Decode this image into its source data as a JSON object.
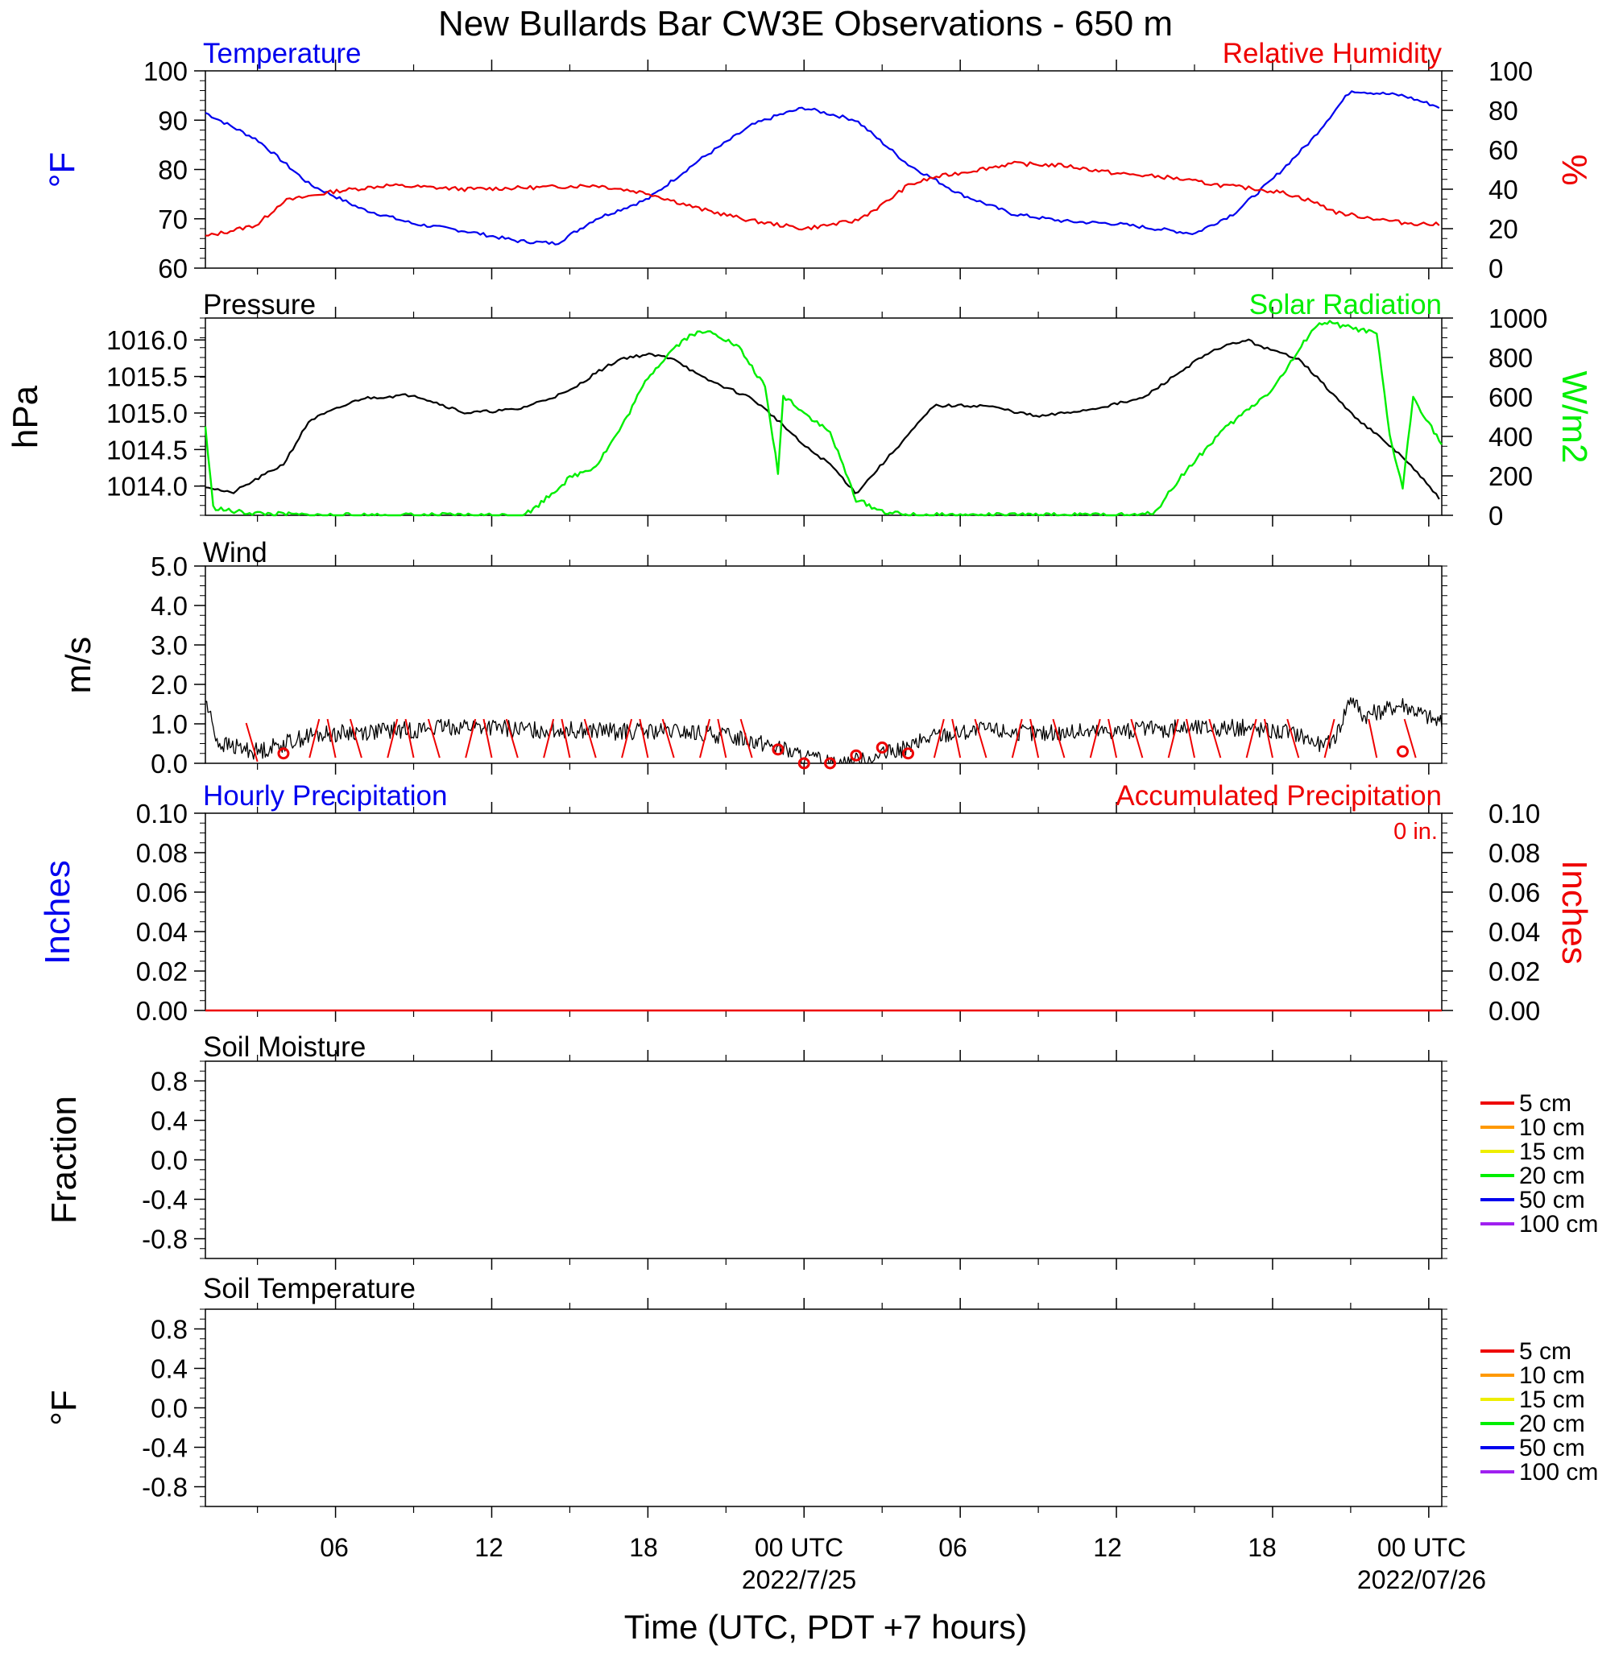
{
  "title": "New Bullards Bar CW3E Observations - 650 m",
  "colors": {
    "temperature": "#0000ee",
    "humidity": "#ee0000",
    "pressure": "#000000",
    "solar": "#00ee00",
    "wind": "#000000",
    "barb": "#ee0000",
    "accum": "#ee0000",
    "hourly": "#0000ee"
  },
  "time_axis": {
    "label": "Time (UTC, PDT +7 hours)",
    "tick_labels": [
      "06",
      "12",
      "18",
      "00 UTC",
      "06",
      "12",
      "18",
      "00 UTC"
    ],
    "date_labels": [
      "2022/7/25",
      "2022/07/26"
    ]
  },
  "panels": {
    "temp_rh": {
      "left_title": "Temperature",
      "right_title": "Relative Humidity",
      "left_unit": "°F",
      "right_unit": "%",
      "left_ticks": [
        "100",
        "90",
        "80",
        "70",
        "60"
      ],
      "right_ticks": [
        "100",
        "80",
        "60",
        "40",
        "20",
        "0"
      ]
    },
    "pressure_solar": {
      "left_title": "Pressure",
      "right_title": "Solar Radiation",
      "left_unit": "hPa",
      "right_unit": "W/m2",
      "left_ticks": [
        "1016.0",
        "1015.5",
        "1015.0",
        "1014.5",
        "1014.0"
      ],
      "right_ticks": [
        "1000",
        "800",
        "600",
        "400",
        "200",
        "0"
      ]
    },
    "wind": {
      "left_title": "Wind",
      "left_unit": "m/s",
      "left_ticks": [
        "5.0",
        "4.0",
        "3.0",
        "2.0",
        "1.0",
        "0.0"
      ]
    },
    "precip": {
      "left_title": "Hourly Precipitation",
      "right_title": "Accumulated Precipitation",
      "total_label": "0 in.",
      "left_unit": "Inches",
      "right_unit": "Inches",
      "left_ticks": [
        "0.10",
        "0.08",
        "0.06",
        "0.04",
        "0.02",
        "0.00"
      ],
      "right_ticks": [
        "0.10",
        "0.08",
        "0.06",
        "0.04",
        "0.02",
        "0.00"
      ]
    },
    "soil_moisture": {
      "left_title": "Soil Moisture",
      "left_unit": "Fraction",
      "left_ticks": [
        "0.8",
        "0.4",
        "0.0",
        "-0.4",
        "-0.8"
      ]
    },
    "soil_temperature": {
      "left_title": "Soil Temperature",
      "left_unit": "°F",
      "left_ticks": [
        "0.8",
        "0.4",
        "0.0",
        "-0.4",
        "-0.8"
      ]
    }
  },
  "soil_legend": [
    {
      "label": "5 cm",
      "color": "#ee0000"
    },
    {
      "label": "10 cm",
      "color": "#ff9900"
    },
    {
      "label": "15 cm",
      "color": "#eeee00"
    },
    {
      "label": "20 cm",
      "color": "#00ee00"
    },
    {
      "label": "50 cm",
      "color": "#0000ee"
    },
    {
      "label": "100 cm",
      "color": "#a020f0"
    }
  ],
  "chart_data": [
    {
      "type": "line",
      "x_unit": "hours since 2022-07-24 01 UTC",
      "series": [
        {
          "name": "Temperature",
          "axis": "left",
          "ylim": [
            60,
            100
          ],
          "x": [
            0,
            2,
            4,
            6,
            8,
            10,
            12,
            13.5,
            15,
            17,
            19,
            21,
            22,
            23,
            25,
            27,
            29,
            31,
            33,
            35,
            36.5,
            38,
            39.5,
            41,
            42.5,
            44,
            46,
            47.5
          ],
          "values": [
            91.5,
            86,
            77,
            72,
            69,
            67.5,
            65.5,
            65,
            70,
            74,
            82,
            89,
            91,
            92.5,
            90,
            81,
            75,
            71,
            69.5,
            69,
            68,
            67,
            71,
            78,
            86,
            96,
            95,
            92.5
          ]
        },
        {
          "name": "Relative Humidity",
          "axis": "right",
          "ylim": [
            0,
            100
          ],
          "x": [
            0,
            2,
            3,
            5,
            7,
            10,
            13,
            15,
            17,
            19,
            21,
            23,
            25,
            26,
            27,
            28,
            31,
            33,
            35,
            37,
            39,
            40.5,
            41.5,
            42.5,
            43.5,
            44.5,
            46,
            47.5
          ],
          "values": [
            16,
            22,
            34,
            39,
            42,
            40,
            41,
            42,
            38,
            30,
            24,
            20,
            24,
            32,
            42,
            46,
            53,
            52,
            48,
            46,
            42,
            40,
            38,
            34,
            28,
            26,
            23,
            22
          ]
        }
      ]
    },
    {
      "type": "line",
      "x_unit": "hours since 2022-07-24 01 UTC",
      "series": [
        {
          "name": "Pressure",
          "axis": "left",
          "ylim": [
            1013.6,
            1016.3
          ],
          "x": [
            0,
            1,
            2,
            3,
            4,
            6,
            8,
            10,
            12,
            14,
            15,
            16,
            17,
            18,
            19,
            21,
            22,
            23,
            24,
            25,
            26,
            28,
            30,
            32,
            34,
            36,
            38,
            39,
            40,
            41,
            42,
            44,
            46,
            47.5
          ],
          "values": [
            1014.0,
            1013.9,
            1014.1,
            1014.3,
            1014.9,
            1015.2,
            1015.25,
            1015.0,
            1015.05,
            1015.3,
            1015.55,
            1015.75,
            1015.8,
            1015.75,
            1015.5,
            1015.2,
            1014.9,
            1014.55,
            1014.3,
            1013.9,
            1014.3,
            1015.1,
            1015.1,
            1014.95,
            1015.05,
            1015.2,
            1015.7,
            1015.9,
            1016.0,
            1015.85,
            1015.75,
            1015.0,
            1014.4,
            1013.8
          ]
        },
        {
          "name": "Solar Radiation",
          "axis": "right",
          "ylim": [
            0,
            1000
          ],
          "x": [
            0,
            0.3,
            1,
            2,
            4,
            12,
            12.5,
            14,
            15,
            16,
            17,
            18,
            18.7,
            19.5,
            20.5,
            21.5,
            22,
            22.2,
            22.5,
            23,
            24,
            25,
            26,
            27,
            36,
            36.5,
            37.5,
            39,
            41,
            42,
            42.5,
            43,
            44,
            45,
            45.5,
            46,
            46.4,
            47.5
          ],
          "values": [
            450,
            40,
            20,
            10,
            0,
            0,
            20,
            190,
            250,
            450,
            700,
            850,
            920,
            930,
            850,
            650,
            220,
            600,
            580,
            520,
            420,
            80,
            20,
            0,
            0,
            20,
            200,
            420,
            640,
            830,
            940,
            980,
            950,
            920,
            400,
            140,
            600,
            360
          ]
        }
      ]
    },
    {
      "type": "line",
      "x_unit": "hours since 2022-07-24 01 UTC",
      "series": [
        {
          "name": "Wind",
          "ylim": [
            0,
            5
          ],
          "x": [
            0,
            0.5,
            2,
            4,
            6,
            8,
            10,
            12,
            14,
            16,
            18,
            20,
            21,
            22,
            23,
            24,
            25,
            26,
            27,
            28,
            30,
            32,
            34,
            36,
            38,
            40,
            42,
            43,
            43.5,
            44,
            44.5,
            46,
            47.5
          ],
          "values": [
            1.6,
            0.5,
            0.3,
            0.7,
            0.8,
            0.85,
            0.95,
            0.85,
            0.85,
            0.8,
            0.8,
            0.7,
            0.6,
            0.4,
            0.15,
            0.0,
            0.05,
            0.2,
            0.4,
            0.7,
            0.85,
            0.75,
            0.8,
            0.85,
            0.9,
            0.9,
            0.75,
            0.4,
            0.8,
            1.7,
            1.2,
            1.5,
            1.0
          ]
        },
        {
          "name": "Calm markers",
          "type": "scatter",
          "x": [
            3,
            22,
            23,
            24,
            25,
            26,
            27,
            46
          ],
          "values": [
            0.25,
            0.35,
            0.0,
            0.0,
            0.2,
            0.4,
            0.25,
            0.3
          ]
        },
        {
          "name": "Wind barbs",
          "x": [
            2,
            4,
            5,
            6,
            7,
            8,
            9,
            10,
            11,
            12,
            13,
            14,
            15,
            16,
            17,
            18,
            19,
            20,
            21,
            28,
            29,
            30,
            31,
            32,
            33,
            34,
            35,
            36,
            37,
            38,
            39,
            40,
            41,
            42,
            43,
            45,
            46.5
          ],
          "values": [
            0.8,
            0.9,
            0.9,
            0.9,
            0.9,
            0.9,
            0.9,
            0.9,
            0.9,
            0.9,
            0.9,
            0.9,
            0.9,
            0.9,
            0.9,
            0.9,
            0.9,
            0.9,
            0.9,
            0.9,
            0.9,
            0.9,
            0.9,
            0.9,
            0.9,
            0.9,
            0.9,
            0.9,
            0.9,
            0.9,
            0.9,
            0.9,
            0.9,
            0.9,
            0.9,
            0.9,
            0.9
          ]
        }
      ]
    },
    {
      "type": "line",
      "x_unit": "hours since 2022-07-24 01 UTC",
      "series": [
        {
          "name": "Hourly Precipitation",
          "axis": "left",
          "ylim": [
            0,
            0.1
          ],
          "x": [
            0,
            47.5
          ],
          "values": [
            0,
            0
          ]
        },
        {
          "name": "Accumulated Precipitation",
          "axis": "right",
          "ylim": [
            0,
            0.1
          ],
          "x": [
            0,
            47.5
          ],
          "values": [
            0,
            0
          ]
        }
      ]
    },
    {
      "type": "line",
      "ylim": [
        -1,
        1
      ],
      "series": []
    },
    {
      "type": "line",
      "ylim": [
        -1,
        1
      ],
      "series": []
    }
  ]
}
